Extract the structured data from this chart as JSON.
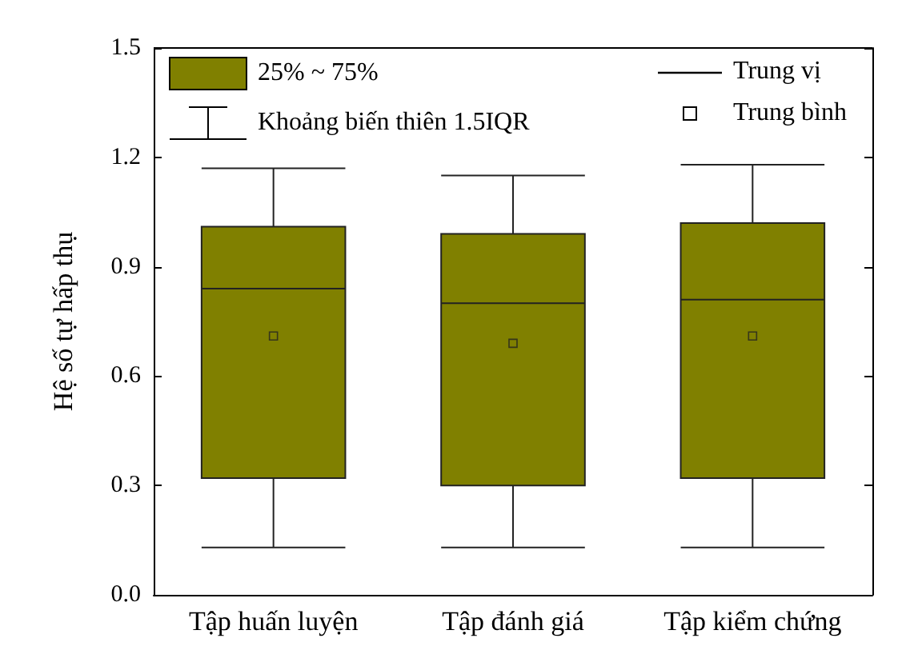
{
  "chart_data": {
    "type": "box",
    "ylabel": "Hệ số tự hấp thụ",
    "categories": [
      "Tập huấn luyện",
      "Tập đánh giá",
      "Tập kiểm chứng"
    ],
    "color": "#808000",
    "boxes": [
      {
        "low": 0.13,
        "q1": 0.32,
        "median": 0.84,
        "q3": 1.01,
        "high": 1.17,
        "mean": 0.71
      },
      {
        "low": 0.13,
        "q1": 0.3,
        "median": 0.8,
        "q3": 0.99,
        "high": 1.15,
        "mean": 0.69
      },
      {
        "low": 0.13,
        "q1": 0.32,
        "median": 0.81,
        "q3": 1.02,
        "high": 1.18,
        "mean": 0.71
      }
    ],
    "ylim": [
      0,
      1.5
    ],
    "yticks": [
      {
        "value": 0,
        "label": "0.0"
      },
      0.3,
      0.6,
      0.9,
      1.2,
      1.5
    ],
    "grid": false,
    "annotations": [
      "25% ~ 75%",
      "Khoảng biến thiên 1.5IQR",
      "Trung vị",
      "Trung bình"
    ]
  }
}
